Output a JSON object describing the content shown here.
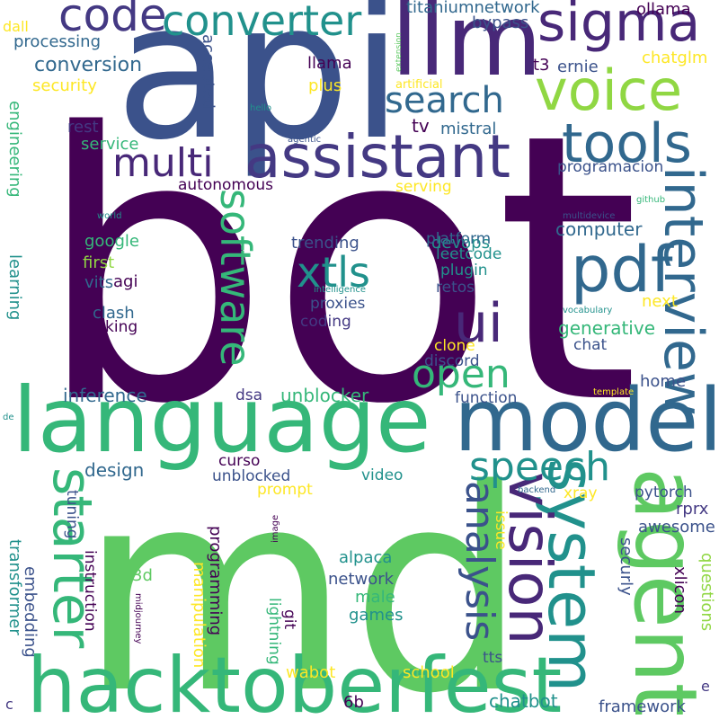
{
  "palette": {
    "c1": "#440154",
    "c2": "#3b528b",
    "c3": "#21918c",
    "c4": "#5ec962",
    "c5": "#fde725",
    "c6": "#482878",
    "c7": "#31688e",
    "c8": "#35b779",
    "c9": "#90d743",
    "c10": "#443983"
  },
  "words": [
    "bot",
    "md",
    "api",
    "language",
    "hacktoberfest",
    "model",
    "agent",
    "llm",
    "sigma",
    "voice",
    "code",
    "converter",
    "system",
    "assistant",
    "tools",
    "interview",
    "vision",
    "starter",
    "pdf",
    "ui",
    "xtls",
    "software",
    "multi",
    "search",
    "open",
    "speech",
    "analysis",
    "conversion",
    "titaniumnetwork",
    "ollama",
    "bypass",
    "processing",
    "dall",
    "security",
    "llama",
    "t3",
    "ernie",
    "chatglm",
    "accepted",
    "artificial",
    "plus",
    "hello",
    "extension",
    "rest",
    "service",
    "tv",
    "mistral",
    "agentic",
    "engineering",
    "programacion",
    "autonomous",
    "serving",
    "world",
    "github",
    "multidevice",
    "devops",
    "computer",
    "google",
    "first",
    "trending",
    "platform",
    "leetcode",
    "plugin",
    "agi",
    "vits",
    "intelligence",
    "next",
    "retos",
    "learning",
    "clash",
    "king",
    "proxies",
    "coding",
    "generative",
    "chat",
    "vocabulary",
    "clone",
    "discord",
    "home",
    "template",
    "inference",
    "dsa",
    "unblocker",
    "function",
    "de",
    "curso",
    "design",
    "unblocked",
    "video",
    "prompt",
    "tuning",
    "pytorch",
    "xray",
    "backend",
    "image",
    "transformer",
    "embedding",
    "instruction",
    "programming",
    "manipulation",
    "3d",
    "alpaca",
    "network",
    "male",
    "games",
    "git",
    "midjourney",
    "lightning",
    "issue",
    "awesome",
    "rprx",
    "securly",
    "xlicon",
    "questions",
    "tts",
    "wabot",
    "school",
    "chatbot",
    "6b",
    "framework",
    "c",
    "e"
  ]
}
